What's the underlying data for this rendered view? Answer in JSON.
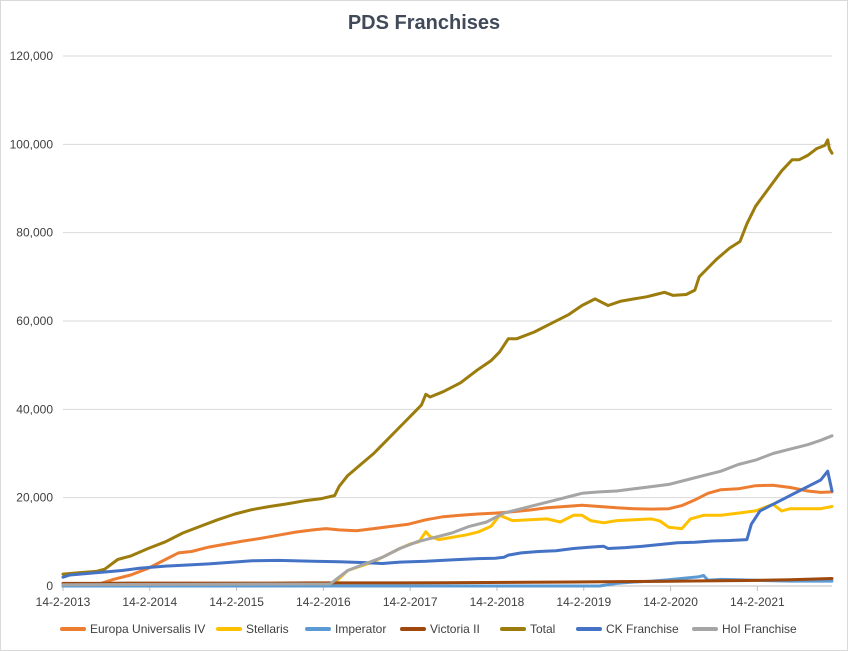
{
  "chart_data": {
    "type": "line",
    "title": "PDS Franchises",
    "xlabel": "",
    "ylabel": "",
    "ylim": [
      0,
      120000
    ],
    "y_ticks": [
      0,
      20000,
      40000,
      60000,
      80000,
      100000,
      120000
    ],
    "y_tick_labels": [
      "0",
      "20,000",
      "40,000",
      "60,000",
      "80,000",
      "100,000",
      "120,000"
    ],
    "x_ticks": [
      2013.12,
      2014.12,
      2015.12,
      2016.12,
      2017.12,
      2018.12,
      2019.12,
      2020.12,
      2021.12
    ],
    "x_tick_labels": [
      "14-2-2013",
      "14-2-2014",
      "14-2-2015",
      "14-2-2016",
      "14-2-2017",
      "14-2-2018",
      "14-2-2019",
      "14-2-2020",
      "14-2-2021"
    ],
    "xlim": [
      2013.12,
      2021.98
    ],
    "grid": true,
    "legend_position": "bottom",
    "series": [
      {
        "name": "Europa Universalis IV",
        "color": "#ed7d31",
        "points": [
          [
            2013.12,
            0
          ],
          [
            2013.5,
            200
          ],
          [
            2013.7,
            1500
          ],
          [
            2013.9,
            2500
          ],
          [
            2014.1,
            4000
          ],
          [
            2014.3,
            6000
          ],
          [
            2014.45,
            7500
          ],
          [
            2014.6,
            7800
          ],
          [
            2014.8,
            8800
          ],
          [
            2015.0,
            9500
          ],
          [
            2015.2,
            10200
          ],
          [
            2015.4,
            10800
          ],
          [
            2015.6,
            11500
          ],
          [
            2015.8,
            12200
          ],
          [
            2016.0,
            12700
          ],
          [
            2016.15,
            13000
          ],
          [
            2016.3,
            12700
          ],
          [
            2016.5,
            12500
          ],
          [
            2016.7,
            13000
          ],
          [
            2016.9,
            13500
          ],
          [
            2017.1,
            14000
          ],
          [
            2017.3,
            15000
          ],
          [
            2017.5,
            15700
          ],
          [
            2017.7,
            16000
          ],
          [
            2017.9,
            16300
          ],
          [
            2018.1,
            16500
          ],
          [
            2018.3,
            16800
          ],
          [
            2018.5,
            17200
          ],
          [
            2018.7,
            17700
          ],
          [
            2018.9,
            18000
          ],
          [
            2019.1,
            18300
          ],
          [
            2019.3,
            18000
          ],
          [
            2019.5,
            17700
          ],
          [
            2019.7,
            17500
          ],
          [
            2019.9,
            17400
          ],
          [
            2020.1,
            17500
          ],
          [
            2020.25,
            18200
          ],
          [
            2020.4,
            19500
          ],
          [
            2020.55,
            21000
          ],
          [
            2020.7,
            21800
          ],
          [
            2020.9,
            22000
          ],
          [
            2021.1,
            22700
          ],
          [
            2021.3,
            22800
          ],
          [
            2021.5,
            22300
          ],
          [
            2021.7,
            21500
          ],
          [
            2021.85,
            21200
          ],
          [
            2021.98,
            21300
          ]
        ]
      },
      {
        "name": "Stellaris",
        "color": "#ffc000",
        "points": [
          [
            2013.12,
            0
          ],
          [
            2016.2,
            0
          ],
          [
            2016.32,
            2000
          ],
          [
            2016.4,
            3500
          ],
          [
            2016.55,
            4500
          ],
          [
            2016.7,
            5500
          ],
          [
            2016.85,
            7000
          ],
          [
            2017.0,
            8500
          ],
          [
            2017.12,
            9500
          ],
          [
            2017.22,
            10000
          ],
          [
            2017.3,
            12300
          ],
          [
            2017.35,
            11200
          ],
          [
            2017.45,
            10500
          ],
          [
            2017.6,
            11000
          ],
          [
            2017.75,
            11500
          ],
          [
            2017.9,
            12200
          ],
          [
            2018.05,
            13500
          ],
          [
            2018.15,
            16000
          ],
          [
            2018.3,
            14800
          ],
          [
            2018.5,
            15000
          ],
          [
            2018.7,
            15200
          ],
          [
            2018.85,
            14500
          ],
          [
            2019.0,
            16000
          ],
          [
            2019.1,
            16000
          ],
          [
            2019.2,
            14800
          ],
          [
            2019.35,
            14300
          ],
          [
            2019.5,
            14800
          ],
          [
            2019.7,
            15000
          ],
          [
            2019.9,
            15200
          ],
          [
            2020.0,
            14700
          ],
          [
            2020.1,
            13300
          ],
          [
            2020.25,
            13000
          ],
          [
            2020.35,
            15200
          ],
          [
            2020.5,
            16000
          ],
          [
            2020.7,
            16000
          ],
          [
            2020.9,
            16500
          ],
          [
            2021.1,
            17000
          ],
          [
            2021.3,
            18500
          ],
          [
            2021.4,
            17000
          ],
          [
            2021.5,
            17500
          ],
          [
            2021.7,
            17500
          ],
          [
            2021.85,
            17500
          ],
          [
            2021.98,
            18000
          ]
        ]
      },
      {
        "name": "Imperator",
        "color": "#5b9bd5",
        "points": [
          [
            2013.12,
            0
          ],
          [
            2019.3,
            0
          ],
          [
            2019.5,
            600
          ],
          [
            2019.7,
            900
          ],
          [
            2019.9,
            1100
          ],
          [
            2020.1,
            1400
          ],
          [
            2020.3,
            1800
          ],
          [
            2020.45,
            2100
          ],
          [
            2020.5,
            2400
          ],
          [
            2020.55,
            1300
          ],
          [
            2020.7,
            1500
          ],
          [
            2020.9,
            1400
          ],
          [
            2021.1,
            1300
          ],
          [
            2021.3,
            1200
          ],
          [
            2021.5,
            1100
          ],
          [
            2021.7,
            1100
          ],
          [
            2021.98,
            1100
          ]
        ]
      },
      {
        "name": "Victoria II",
        "color": "#9e480e",
        "points": [
          [
            2013.12,
            600
          ],
          [
            2013.5,
            600
          ],
          [
            2014.0,
            650
          ],
          [
            2014.5,
            650
          ],
          [
            2015.0,
            650
          ],
          [
            2015.5,
            650
          ],
          [
            2016.0,
            700
          ],
          [
            2016.5,
            700
          ],
          [
            2017.0,
            700
          ],
          [
            2017.5,
            750
          ],
          [
            2018.0,
            800
          ],
          [
            2018.5,
            850
          ],
          [
            2019.0,
            900
          ],
          [
            2019.5,
            1000
          ],
          [
            2020.0,
            1050
          ],
          [
            2020.5,
            1150
          ],
          [
            2021.0,
            1250
          ],
          [
            2021.5,
            1400
          ],
          [
            2021.98,
            1700
          ]
        ]
      },
      {
        "name": "Total",
        "color": "#9b7c0c",
        "points": [
          [
            2013.12,
            2700
          ],
          [
            2013.3,
            3000
          ],
          [
            2013.5,
            3300
          ],
          [
            2013.6,
            3800
          ],
          [
            2013.75,
            6000
          ],
          [
            2013.9,
            6800
          ],
          [
            2014.1,
            8500
          ],
          [
            2014.3,
            10000
          ],
          [
            2014.5,
            12000
          ],
          [
            2014.7,
            13500
          ],
          [
            2014.9,
            15000
          ],
          [
            2015.1,
            16300
          ],
          [
            2015.3,
            17300
          ],
          [
            2015.5,
            18000
          ],
          [
            2015.7,
            18600
          ],
          [
            2015.9,
            19300
          ],
          [
            2016.1,
            19800
          ],
          [
            2016.25,
            20500
          ],
          [
            2016.3,
            22500
          ],
          [
            2016.4,
            25000
          ],
          [
            2016.55,
            27500
          ],
          [
            2016.7,
            30000
          ],
          [
            2016.85,
            33000
          ],
          [
            2017.0,
            36000
          ],
          [
            2017.15,
            39000
          ],
          [
            2017.25,
            41000
          ],
          [
            2017.3,
            43400
          ],
          [
            2017.35,
            42800
          ],
          [
            2017.5,
            44000
          ],
          [
            2017.7,
            46000
          ],
          [
            2017.9,
            49000
          ],
          [
            2018.05,
            51000
          ],
          [
            2018.15,
            53000
          ],
          [
            2018.25,
            56000
          ],
          [
            2018.35,
            56000
          ],
          [
            2018.55,
            57500
          ],
          [
            2018.75,
            59500
          ],
          [
            2018.95,
            61500
          ],
          [
            2019.1,
            63500
          ],
          [
            2019.25,
            65000
          ],
          [
            2019.4,
            63500
          ],
          [
            2019.55,
            64500
          ],
          [
            2019.7,
            65000
          ],
          [
            2019.85,
            65500
          ],
          [
            2019.95,
            66000
          ],
          [
            2020.05,
            66500
          ],
          [
            2020.15,
            65800
          ],
          [
            2020.3,
            66000
          ],
          [
            2020.4,
            67000
          ],
          [
            2020.45,
            70000
          ],
          [
            2020.55,
            72000
          ],
          [
            2020.65,
            74000
          ],
          [
            2020.8,
            76500
          ],
          [
            2020.92,
            78000
          ],
          [
            2021.0,
            82000
          ],
          [
            2021.1,
            86000
          ],
          [
            2021.25,
            90000
          ],
          [
            2021.4,
            94000
          ],
          [
            2021.52,
            96500
          ],
          [
            2021.6,
            96500
          ],
          [
            2021.7,
            97500
          ],
          [
            2021.8,
            99000
          ],
          [
            2021.9,
            99800
          ],
          [
            2021.93,
            101000
          ],
          [
            2021.95,
            99000
          ],
          [
            2021.98,
            98000
          ]
        ]
      },
      {
        "name": "CK Franchise",
        "color": "#4472c4",
        "points": [
          [
            2013.12,
            2000
          ],
          [
            2013.2,
            2500
          ],
          [
            2013.5,
            3000
          ],
          [
            2013.8,
            3500
          ],
          [
            2014.0,
            4000
          ],
          [
            2014.3,
            4500
          ],
          [
            2014.5,
            4700
          ],
          [
            2014.8,
            5000
          ],
          [
            2015.0,
            5300
          ],
          [
            2015.3,
            5700
          ],
          [
            2015.6,
            5800
          ],
          [
            2016.0,
            5600
          ],
          [
            2016.3,
            5500
          ],
          [
            2016.6,
            5300
          ],
          [
            2016.8,
            5100
          ],
          [
            2017.0,
            5400
          ],
          [
            2017.3,
            5600
          ],
          [
            2017.6,
            5900
          ],
          [
            2017.9,
            6200
          ],
          [
            2018.1,
            6300
          ],
          [
            2018.2,
            6500
          ],
          [
            2018.25,
            7000
          ],
          [
            2018.4,
            7500
          ],
          [
            2018.6,
            7800
          ],
          [
            2018.8,
            8000
          ],
          [
            2019.0,
            8500
          ],
          [
            2019.2,
            8800
          ],
          [
            2019.35,
            9000
          ],
          [
            2019.4,
            8500
          ],
          [
            2019.6,
            8700
          ],
          [
            2019.8,
            9000
          ],
          [
            2020.0,
            9400
          ],
          [
            2020.2,
            9800
          ],
          [
            2020.4,
            9900
          ],
          [
            2020.6,
            10200
          ],
          [
            2020.8,
            10300
          ],
          [
            2021.0,
            10500
          ],
          [
            2021.05,
            14000
          ],
          [
            2021.15,
            17000
          ],
          [
            2021.3,
            18500
          ],
          [
            2021.45,
            20000
          ],
          [
            2021.6,
            21500
          ],
          [
            2021.75,
            23000
          ],
          [
            2021.85,
            24000
          ],
          [
            2021.93,
            26000
          ],
          [
            2021.98,
            21500
          ]
        ]
      },
      {
        "name": "HoI Franchise",
        "color": "#a5a5a5",
        "points": [
          [
            2013.12,
            300
          ],
          [
            2014.0,
            350
          ],
          [
            2015.0,
            400
          ],
          [
            2016.2,
            450
          ],
          [
            2016.3,
            2000
          ],
          [
            2016.4,
            3500
          ],
          [
            2016.6,
            5000
          ],
          [
            2016.8,
            6500
          ],
          [
            2017.0,
            8500
          ],
          [
            2017.2,
            10000
          ],
          [
            2017.4,
            11000
          ],
          [
            2017.6,
            12000
          ],
          [
            2017.8,
            13500
          ],
          [
            2018.0,
            14500
          ],
          [
            2018.2,
            16500
          ],
          [
            2018.4,
            17500
          ],
          [
            2018.6,
            18500
          ],
          [
            2018.8,
            19500
          ],
          [
            2019.0,
            20500
          ],
          [
            2019.1,
            21000
          ],
          [
            2019.3,
            21300
          ],
          [
            2019.5,
            21500
          ],
          [
            2019.7,
            22000
          ],
          [
            2019.9,
            22500
          ],
          [
            2020.1,
            23000
          ],
          [
            2020.3,
            24000
          ],
          [
            2020.5,
            25000
          ],
          [
            2020.7,
            26000
          ],
          [
            2020.9,
            27500
          ],
          [
            2021.1,
            28500
          ],
          [
            2021.3,
            30000
          ],
          [
            2021.5,
            31000
          ],
          [
            2021.7,
            32000
          ],
          [
            2021.85,
            33000
          ],
          [
            2021.98,
            34000
          ]
        ]
      }
    ]
  }
}
